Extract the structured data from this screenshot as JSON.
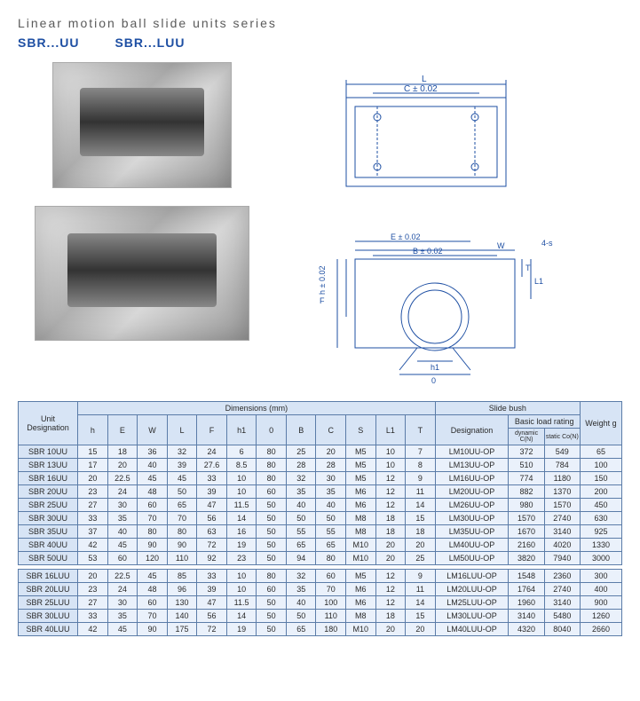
{
  "title": "Linear motion ball slide units series",
  "subtitles": [
    "SBR...UU",
    "SBR...LUU"
  ],
  "diagram_labels": {
    "top": {
      "L": "L",
      "C": "C ± 0.02"
    },
    "front": {
      "E": "E ± 0.02",
      "W": "W",
      "B": "B ± 0.02",
      "h": "h ± 0.02",
      "F": "F",
      "T": "T",
      "L1": "L1",
      "h1": "h1",
      "zero": "0",
      "fourS": "4-s"
    }
  },
  "table": {
    "group_headers": {
      "unit": "Unit Designation",
      "dimensions": "Dimensions  (mm)",
      "slidebush": "Slide bush",
      "weight": "Weight g"
    },
    "dim_headers": [
      "h",
      "E",
      "W",
      "L",
      "F",
      "h1",
      "0",
      "B",
      "C",
      "S",
      "L1",
      "T"
    ],
    "bush_headers": {
      "desig": "Designation",
      "basic": "Basic load rating",
      "dyn": "dynamic C(N)",
      "stat": "static Co(N)"
    },
    "rows_uu": [
      {
        "u": "SBR 10UU",
        "d": [
          "15",
          "18",
          "36",
          "32",
          "24",
          "6",
          "80",
          "25",
          "20",
          "M5",
          "10",
          "7"
        ],
        "b": "LM10UU-OP",
        "l": [
          "372",
          "549"
        ],
        "w": "65"
      },
      {
        "u": "SBR 13UU",
        "d": [
          "17",
          "20",
          "40",
          "39",
          "27.6",
          "8.5",
          "80",
          "28",
          "28",
          "M5",
          "10",
          "8"
        ],
        "b": "LM13UU-OP",
        "l": [
          "510",
          "784"
        ],
        "w": "100"
      },
      {
        "u": "SBR 16UU",
        "d": [
          "20",
          "22.5",
          "45",
          "45",
          "33",
          "10",
          "80",
          "32",
          "30",
          "M5",
          "12",
          "9"
        ],
        "b": "LM16UU-OP",
        "l": [
          "774",
          "1180"
        ],
        "w": "150"
      },
      {
        "u": "SBR 20UU",
        "d": [
          "23",
          "24",
          "48",
          "50",
          "39",
          "10",
          "60",
          "35",
          "35",
          "M6",
          "12",
          "11"
        ],
        "b": "LM20UU-OP",
        "l": [
          "882",
          "1370"
        ],
        "w": "200"
      },
      {
        "u": "SBR 25UU",
        "d": [
          "27",
          "30",
          "60",
          "65",
          "47",
          "11.5",
          "50",
          "40",
          "40",
          "M6",
          "12",
          "14"
        ],
        "b": "LM26UU-OP",
        "l": [
          "980",
          "1570"
        ],
        "w": "450"
      },
      {
        "u": "SBR 30UU",
        "d": [
          "33",
          "35",
          "70",
          "70",
          "56",
          "14",
          "50",
          "50",
          "50",
          "M8",
          "18",
          "15"
        ],
        "b": "LM30UU-OP",
        "l": [
          "1570",
          "2740"
        ],
        "w": "630"
      },
      {
        "u": "SBR 35UU",
        "d": [
          "37",
          "40",
          "80",
          "80",
          "63",
          "16",
          "50",
          "55",
          "55",
          "M8",
          "18",
          "18"
        ],
        "b": "LM35UU-OP",
        "l": [
          "1670",
          "3140"
        ],
        "w": "925"
      },
      {
        "u": "SBR 40UU",
        "d": [
          "42",
          "45",
          "90",
          "90",
          "72",
          "19",
          "50",
          "65",
          "65",
          "M10",
          "20",
          "20"
        ],
        "b": "LM40UU-OP",
        "l": [
          "2160",
          "4020"
        ],
        "w": "1330"
      },
      {
        "u": "SBR 50UU",
        "d": [
          "53",
          "60",
          "120",
          "110",
          "92",
          "23",
          "50",
          "94",
          "80",
          "M10",
          "20",
          "25"
        ],
        "b": "LM50UU-OP",
        "l": [
          "3820",
          "7940"
        ],
        "w": "3000"
      }
    ],
    "rows_luu": [
      {
        "u": "SBR 16LUU",
        "d": [
          "20",
          "22.5",
          "45",
          "85",
          "33",
          "10",
          "80",
          "32",
          "60",
          "M5",
          "12",
          "9"
        ],
        "b": "LM16LUU-OP",
        "l": [
          "1548",
          "2360"
        ],
        "w": "300"
      },
      {
        "u": "SBR 20LUU",
        "d": [
          "23",
          "24",
          "48",
          "96",
          "39",
          "10",
          "60",
          "35",
          "70",
          "M6",
          "12",
          "11"
        ],
        "b": "LM20LUU-OP",
        "l": [
          "1764",
          "2740"
        ],
        "w": "400"
      },
      {
        "u": "SBR 25LUU",
        "d": [
          "27",
          "30",
          "60",
          "130",
          "47",
          "11.5",
          "50",
          "40",
          "100",
          "M6",
          "12",
          "14"
        ],
        "b": "LM25LUU-OP",
        "l": [
          "1960",
          "3140"
        ],
        "w": "900"
      },
      {
        "u": "SBR 30LUU",
        "d": [
          "33",
          "35",
          "70",
          "140",
          "56",
          "14",
          "50",
          "50",
          "110",
          "M8",
          "18",
          "15"
        ],
        "b": "LM30LUU-OP",
        "l": [
          "3140",
          "5480"
        ],
        "w": "1260"
      },
      {
        "u": "SBR 40LUU",
        "d": [
          "42",
          "45",
          "90",
          "175",
          "72",
          "19",
          "50",
          "65",
          "180",
          "M10",
          "20",
          "20"
        ],
        "b": "LM40LUU-OP",
        "l": [
          "4320",
          "8040"
        ],
        "w": "2660"
      }
    ]
  }
}
